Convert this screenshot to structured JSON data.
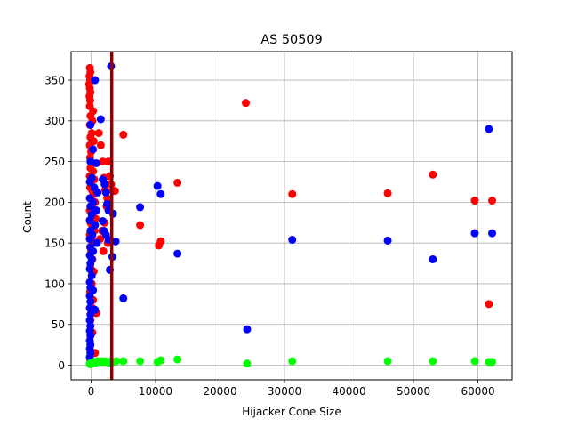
{
  "chart_data": {
    "type": "scatter",
    "title": "AS 50509",
    "xlabel": "Hijacker Cone Size",
    "ylabel": "Count",
    "xlim": [
      -3100,
      65300
    ],
    "ylim": [
      -18,
      385
    ],
    "xticks": [
      0,
      10000,
      20000,
      30000,
      40000,
      50000,
      60000
    ],
    "yticks": [
      0,
      50,
      100,
      150,
      200,
      250,
      300,
      350
    ],
    "grid": true,
    "vline": {
      "x": 3200,
      "color": "#8b0000"
    },
    "colors": {
      "red": "#ff0000",
      "blue": "#0000ff",
      "green": "#00ff00"
    },
    "series": [
      {
        "color": "#ff0000",
        "points": [
          [
            -200,
            365
          ],
          [
            -100,
            360
          ],
          [
            -250,
            355
          ],
          [
            -150,
            350
          ],
          [
            -300,
            345
          ],
          [
            -200,
            340
          ],
          [
            -100,
            335
          ],
          [
            -250,
            330
          ],
          [
            -150,
            325
          ],
          [
            -200,
            318
          ],
          [
            300,
            312
          ],
          [
            -100,
            306
          ],
          [
            200,
            300
          ],
          [
            -200,
            295
          ],
          [
            100,
            285
          ],
          [
            -100,
            280
          ],
          [
            400,
            275
          ],
          [
            -200,
            270
          ],
          [
            0,
            262
          ],
          [
            -150,
            255
          ],
          [
            200,
            248
          ],
          [
            -100,
            242
          ],
          [
            300,
            238
          ],
          [
            -200,
            232
          ],
          [
            500,
            228
          ],
          [
            0,
            222
          ],
          [
            -150,
            218
          ],
          [
            200,
            214
          ],
          [
            400,
            210
          ],
          [
            -100,
            205
          ],
          [
            600,
            200
          ],
          [
            100,
            196
          ],
          [
            -200,
            190
          ],
          [
            300,
            184
          ],
          [
            700,
            180
          ],
          [
            -100,
            175
          ],
          [
            200,
            170
          ],
          [
            500,
            165
          ],
          [
            -200,
            160
          ],
          [
            100,
            155
          ],
          [
            300,
            150
          ],
          [
            -150,
            145
          ],
          [
            0,
            140
          ],
          [
            200,
            130
          ],
          [
            -100,
            120
          ],
          [
            400,
            115
          ],
          [
            100,
            100
          ],
          [
            -150,
            90
          ],
          [
            300,
            80
          ],
          [
            200,
            70
          ],
          [
            -100,
            55
          ],
          [
            200,
            40
          ],
          [
            600,
            15
          ],
          [
            1200,
            285
          ],
          [
            1500,
            270
          ],
          [
            1800,
            250
          ],
          [
            2000,
            230
          ],
          [
            2200,
            215
          ],
          [
            2500,
            205
          ],
          [
            2700,
            250
          ],
          [
            2900,
            232
          ],
          [
            3100,
            222
          ],
          [
            3400,
            214
          ],
          [
            3700,
            214
          ],
          [
            2400,
            195
          ],
          [
            2100,
            175
          ],
          [
            1700,
            165
          ],
          [
            1400,
            155
          ],
          [
            1900,
            140
          ],
          [
            2600,
            150
          ],
          [
            800,
            64
          ],
          [
            5000,
            283
          ],
          [
            7600,
            172
          ],
          [
            10500,
            147
          ],
          [
            10800,
            152
          ],
          [
            13400,
            224
          ],
          [
            24000,
            322
          ],
          [
            31200,
            210
          ],
          [
            46000,
            211
          ],
          [
            53000,
            234
          ],
          [
            59500,
            202
          ],
          [
            61700,
            75
          ],
          [
            62200,
            202
          ]
        ]
      },
      {
        "color": "#0000ff",
        "points": [
          [
            3100,
            367
          ],
          [
            600,
            350
          ],
          [
            1500,
            302
          ],
          [
            -100,
            295
          ],
          [
            300,
            265
          ],
          [
            -100,
            250
          ],
          [
            800,
            248
          ],
          [
            100,
            230
          ],
          [
            -200,
            225
          ],
          [
            500,
            218
          ],
          [
            1000,
            212
          ],
          [
            -200,
            205
          ],
          [
            300,
            200
          ],
          [
            -100,
            195
          ],
          [
            800,
            190
          ],
          [
            100,
            185
          ],
          [
            -200,
            178
          ],
          [
            600,
            172
          ],
          [
            -100,
            165
          ],
          [
            200,
            160
          ],
          [
            -200,
            155
          ],
          [
            900,
            150
          ],
          [
            -100,
            145
          ],
          [
            300,
            140
          ],
          [
            -200,
            135
          ],
          [
            100,
            130
          ],
          [
            -100,
            125
          ],
          [
            -200,
            118
          ],
          [
            100,
            110
          ],
          [
            -200,
            102
          ],
          [
            -100,
            95
          ],
          [
            300,
            92
          ],
          [
            -200,
            85
          ],
          [
            -100,
            78
          ],
          [
            -200,
            70
          ],
          [
            600,
            68
          ],
          [
            -100,
            62
          ],
          [
            -200,
            55
          ],
          [
            -100,
            48
          ],
          [
            -200,
            42
          ],
          [
            -100,
            36
          ],
          [
            -200,
            30
          ],
          [
            -100,
            25
          ],
          [
            -200,
            20
          ],
          [
            -100,
            15
          ],
          [
            -200,
            10
          ],
          [
            -100,
            6
          ],
          [
            1800,
            228
          ],
          [
            2100,
            222
          ],
          [
            2300,
            212
          ],
          [
            2500,
            198
          ],
          [
            2700,
            190
          ],
          [
            3400,
            186
          ],
          [
            1800,
            177
          ],
          [
            2000,
            165
          ],
          [
            2300,
            160
          ],
          [
            2700,
            154
          ],
          [
            3800,
            152
          ],
          [
            3300,
            133
          ],
          [
            2900,
            117
          ],
          [
            5000,
            82
          ],
          [
            7600,
            194
          ],
          [
            10300,
            220
          ],
          [
            10800,
            210
          ],
          [
            13400,
            137
          ],
          [
            24200,
            44
          ],
          [
            31200,
            154
          ],
          [
            46000,
            153
          ],
          [
            53000,
            130
          ],
          [
            59500,
            162
          ],
          [
            61700,
            290
          ],
          [
            62200,
            162
          ]
        ]
      },
      {
        "color": "#00ff00",
        "points": [
          [
            -200,
            2
          ],
          [
            -100,
            1
          ],
          [
            200,
            3
          ],
          [
            400,
            4
          ],
          [
            700,
            3
          ],
          [
            1000,
            5
          ],
          [
            1300,
            4
          ],
          [
            1600,
            5
          ],
          [
            1900,
            4
          ],
          [
            2200,
            5
          ],
          [
            2500,
            4
          ],
          [
            2800,
            3
          ],
          [
            3100,
            5
          ],
          [
            3500,
            4
          ],
          [
            3900,
            5
          ],
          [
            5000,
            5
          ],
          [
            7600,
            5
          ],
          [
            10300,
            4
          ],
          [
            10800,
            6
          ],
          [
            13400,
            7
          ],
          [
            24200,
            2
          ],
          [
            31200,
            5
          ],
          [
            46000,
            5
          ],
          [
            53000,
            5
          ],
          [
            59500,
            5
          ],
          [
            61700,
            4
          ],
          [
            62200,
            4
          ]
        ]
      }
    ]
  }
}
